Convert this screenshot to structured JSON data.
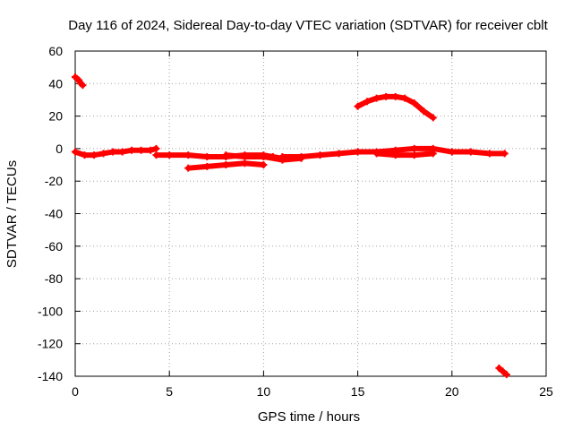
{
  "chart_data": {
    "type": "scatter",
    "title": "Day 116 of 2024, Sidereal Day-to-day VTEC variation (SDTVAR) for receiver cblt",
    "xlabel": "GPS time / hours",
    "ylabel": "SDTVAR / TECUs",
    "xlim": [
      0,
      25
    ],
    "ylim": [
      -140,
      60
    ],
    "xticks": [
      0,
      5,
      10,
      15,
      20,
      25
    ],
    "yticks": [
      -140,
      -120,
      -100,
      -80,
      -60,
      -40,
      -20,
      0,
      20,
      40,
      60
    ],
    "grid": true,
    "marker_color": "#ff0000",
    "series": [
      {
        "name": "arc-early-high",
        "x": [
          0.0,
          0.1,
          0.2,
          0.3,
          0.4
        ],
        "y": [
          44,
          43,
          42,
          40,
          39
        ]
      },
      {
        "name": "arc-main-0",
        "x": [
          0.0,
          0.5,
          1.0,
          1.5,
          2.0,
          2.5,
          3.0,
          3.5,
          4.0,
          4.3
        ],
        "y": [
          -2,
          -4,
          -4,
          -3,
          -2,
          -2,
          -1,
          -1,
          -1,
          0
        ]
      },
      {
        "name": "arc-main-1",
        "x": [
          4.3,
          5.0,
          6.0,
          7.0,
          8.0,
          9.0,
          10.0,
          10.5,
          11.0
        ],
        "y": [
          -4,
          -4,
          -4,
          -5,
          -5,
          -4,
          -4,
          -5,
          -6
        ]
      },
      {
        "name": "arc-main-2",
        "x": [
          11.0,
          12.0,
          13.0,
          14.0,
          15.0,
          16.0,
          17.0,
          18.0,
          19.0,
          20.0,
          21.0,
          22.0,
          22.8
        ],
        "y": [
          -5,
          -5,
          -4,
          -3,
          -2,
          -2,
          -1,
          0,
          0,
          -2,
          -2,
          -3,
          -3
        ]
      },
      {
        "name": "arc-dip",
        "x": [
          6.0,
          7.0,
          8.0,
          9.0,
          10.0
        ],
        "y": [
          -12,
          -11,
          -10,
          -9,
          -10
        ]
      },
      {
        "name": "arc-mid-lower",
        "x": [
          8.0,
          9.0,
          10.0,
          11.0,
          12.0
        ],
        "y": [
          -4,
          -5,
          -5,
          -7,
          -6
        ]
      },
      {
        "name": "arc-hump",
        "x": [
          15.0,
          15.5,
          16.0,
          16.5,
          17.0,
          17.5,
          18.0,
          18.5,
          19.0
        ],
        "y": [
          26,
          29,
          31,
          32,
          32,
          31,
          28,
          23,
          19
        ]
      },
      {
        "name": "arc-late-segment",
        "x": [
          16.0,
          17.0,
          18.0,
          19.0
        ],
        "y": [
          -3,
          -4,
          -4,
          -3
        ]
      },
      {
        "name": "arc-late-low",
        "x": [
          22.5,
          22.7,
          22.9
        ],
        "y": [
          -135,
          -137,
          -139
        ]
      }
    ]
  }
}
